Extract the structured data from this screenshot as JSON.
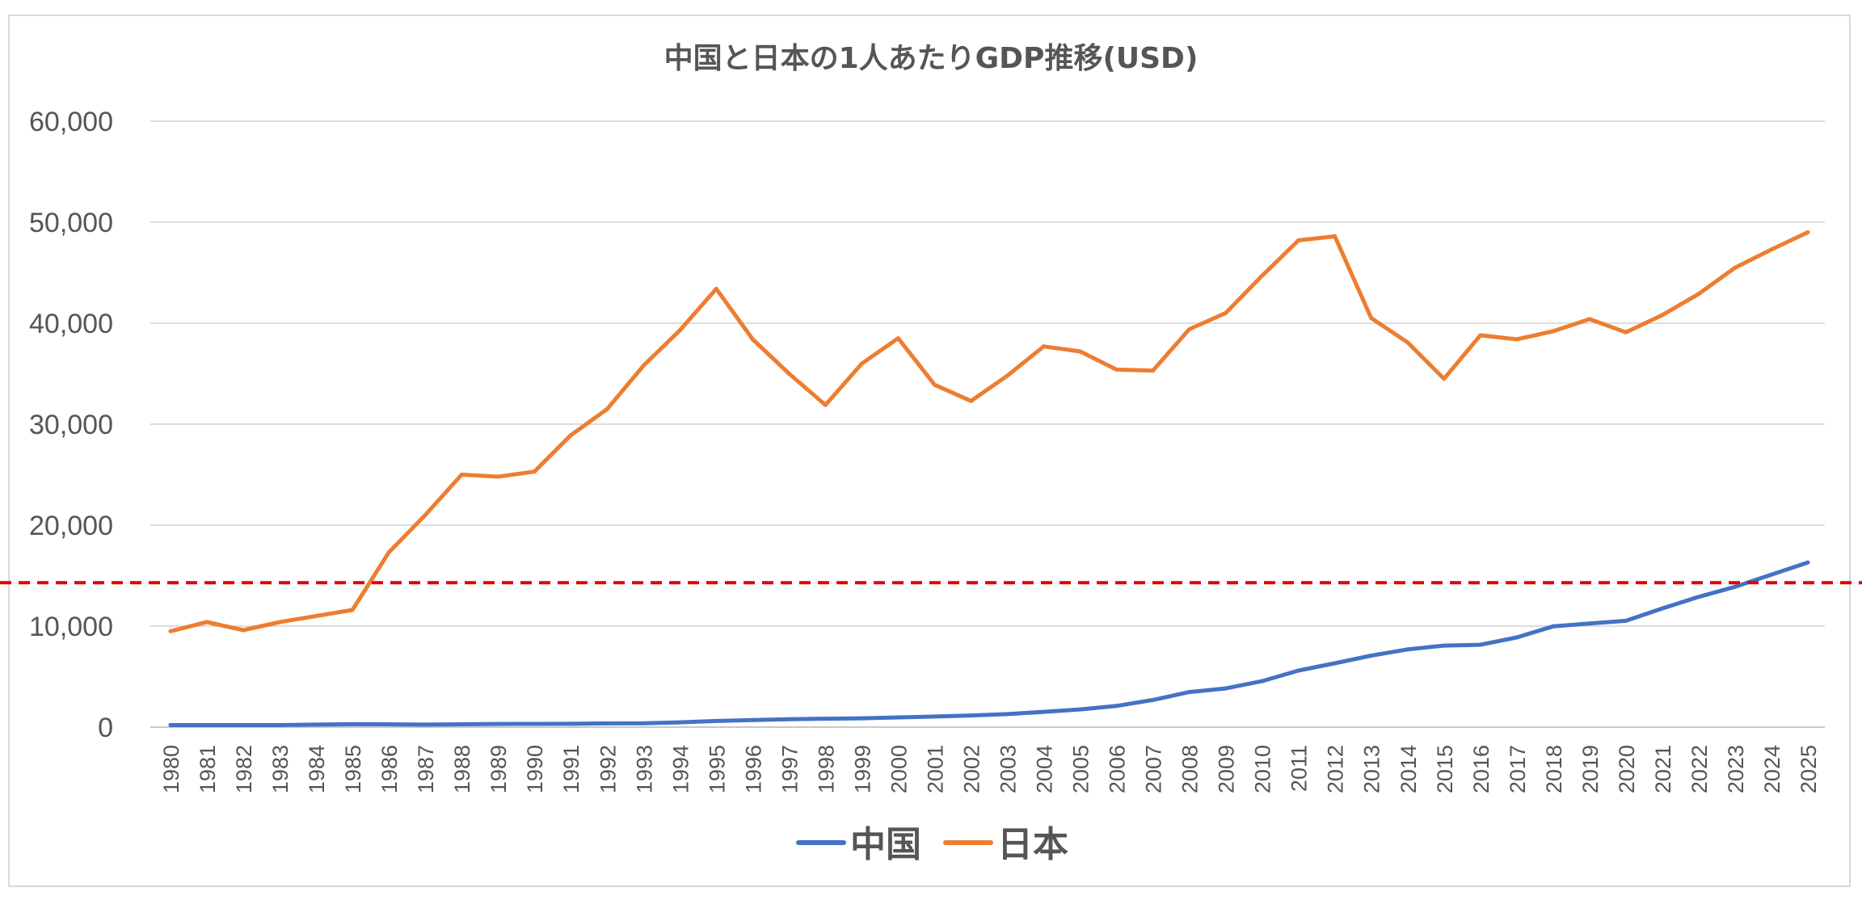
{
  "chart_data": {
    "type": "line",
    "title": "中国と日本の1人あたりGDP推移(USD)",
    "xlabel": "",
    "ylabel": "",
    "ylim": [
      0,
      60000
    ],
    "yticks": [
      0,
      10000,
      20000,
      30000,
      40000,
      50000,
      60000
    ],
    "ytick_labels": [
      "0",
      "10,000",
      "20,000",
      "30,000",
      "40,000",
      "50,000",
      "60,000"
    ],
    "grid": true,
    "legend_position": "bottom",
    "x": [
      "1980",
      "1981",
      "1982",
      "1983",
      "1984",
      "1985",
      "1986",
      "1987",
      "1988",
      "1989",
      "1990",
      "1991",
      "1992",
      "1993",
      "1994",
      "1995",
      "1996",
      "1997",
      "1998",
      "1999",
      "2000",
      "2001",
      "2002",
      "2003",
      "2004",
      "2005",
      "2006",
      "2007",
      "2008",
      "2009",
      "2010",
      "2011",
      "2012",
      "2013",
      "2014",
      "2015",
      "2016",
      "2017",
      "2018",
      "2019",
      "2020",
      "2021",
      "2022",
      "2023",
      "2024",
      "2025"
    ],
    "series": [
      {
        "name": "中国",
        "color": "#4472C4",
        "values": [
          200,
          200,
          200,
          200,
          250,
          290,
          280,
          250,
          280,
          310,
          320,
          330,
          370,
          380,
          470,
          610,
          700,
          780,
          830,
          870,
          960,
          1050,
          1150,
          1290,
          1510,
          1750,
          2100,
          2690,
          3470,
          3830,
          4550,
          5600,
          6320,
          7080,
          7700,
          8070,
          8150,
          8880,
          9980,
          10260,
          10530,
          11750,
          12900,
          13900,
          15100,
          16300
        ]
      },
      {
        "name": "日本",
        "color": "#ED7D31",
        "values": [
          9500,
          10400,
          9600,
          10400,
          11000,
          11600,
          17300,
          21000,
          25000,
          24800,
          25300,
          28900,
          31500,
          35800,
          39300,
          43400,
          38400,
          35000,
          31900,
          36000,
          38500,
          33900,
          32300,
          34800,
          37700,
          37200,
          35400,
          35300,
          39400,
          41000,
          44700,
          48200,
          48600,
          40500,
          38100,
          34500,
          38800,
          38400,
          39200,
          40400,
          39100,
          40800,
          42900,
          45500,
          47300,
          49000
        ]
      }
    ],
    "reference_line": {
      "value": 14300,
      "color": "#E00000",
      "style": "dashed"
    }
  }
}
